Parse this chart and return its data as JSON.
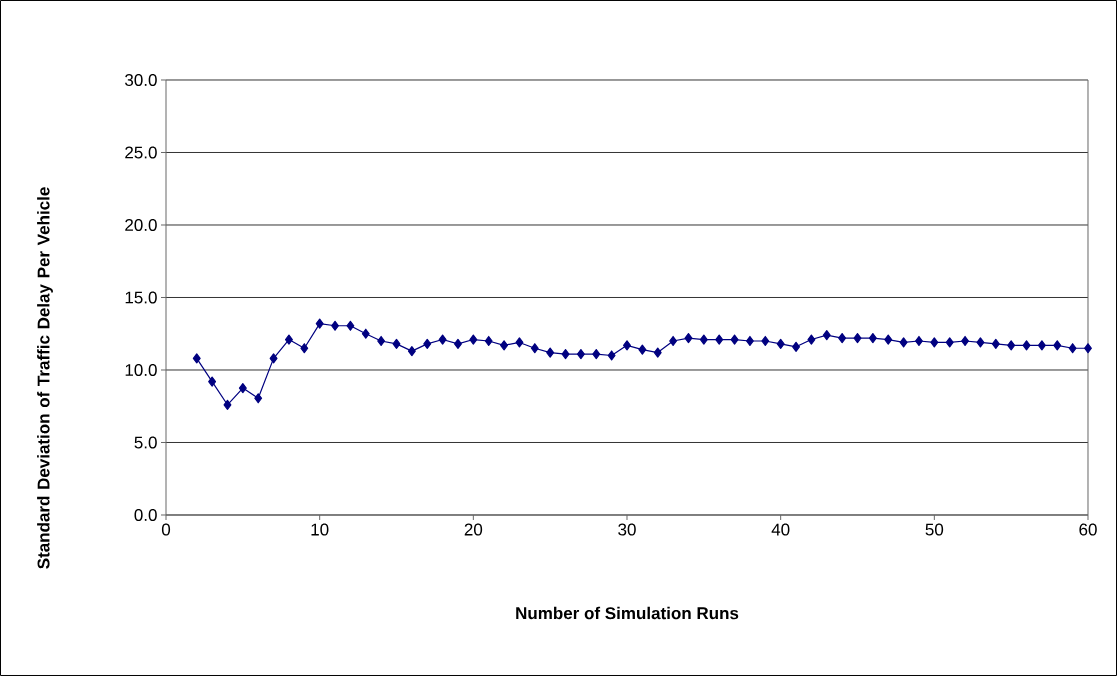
{
  "chart_data": {
    "type": "line",
    "xlabel": "Number of Simulation Runs",
    "ylabel": "Standard Deviation of Traffic Delay Per Vehicle",
    "x": [
      2,
      3,
      4,
      5,
      6,
      7,
      8,
      9,
      10,
      11,
      12,
      13,
      14,
      15,
      16,
      17,
      18,
      19,
      20,
      21,
      22,
      23,
      24,
      25,
      26,
      27,
      28,
      29,
      30,
      31,
      32,
      33,
      34,
      35,
      36,
      37,
      38,
      39,
      40,
      41,
      42,
      43,
      44,
      45,
      46,
      47,
      48,
      49,
      50,
      51,
      52,
      53,
      54,
      55,
      56,
      57,
      58,
      59,
      60
    ],
    "series": [
      {
        "color": "#000080",
        "values": [
          10.8,
          9.2,
          7.6,
          8.75,
          8.05,
          10.8,
          12.1,
          11.5,
          13.2,
          13.05,
          13.05,
          12.5,
          12.0,
          11.8,
          11.3,
          11.8,
          12.1,
          11.8,
          12.1,
          12.0,
          11.7,
          11.9,
          11.5,
          11.2,
          11.1,
          11.1,
          11.1,
          11.0,
          11.7,
          11.4,
          11.2,
          12.0,
          12.2,
          12.1,
          12.1,
          12.1,
          12.0,
          12.0,
          11.8,
          11.6,
          12.1,
          12.4,
          12.2,
          12.2,
          12.2,
          12.1,
          11.9,
          12.0,
          11.9,
          11.9,
          12.0,
          11.9,
          11.8,
          11.7,
          11.7,
          11.7,
          11.7,
          11.5,
          11.5
        ]
      }
    ],
    "xlim": [
      0,
      60
    ],
    "ylim": [
      0,
      30
    ],
    "xticks": [
      0,
      10,
      20,
      30,
      40,
      50,
      60
    ],
    "yticks": [
      {
        "value": 0,
        "label": "0.0"
      },
      {
        "value": 5,
        "label": "5.0"
      },
      {
        "value": 10,
        "label": "10.0"
      },
      {
        "value": 15,
        "label": "15.0"
      },
      {
        "value": 20,
        "label": "20.0"
      },
      {
        "value": 25,
        "label": "25.0"
      },
      {
        "value": 30,
        "label": "30.0"
      }
    ],
    "grid": "y",
    "marker": "diamond",
    "line_style": "solid"
  }
}
